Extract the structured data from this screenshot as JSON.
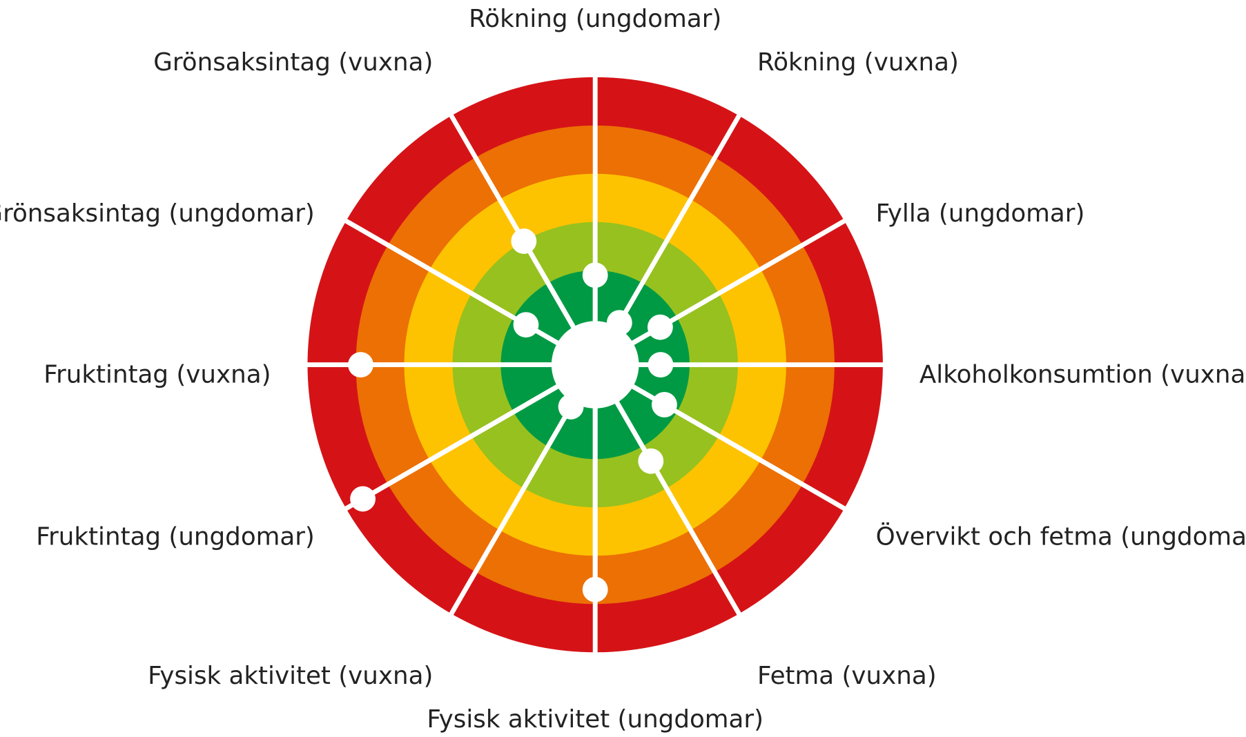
{
  "chart_data": {
    "type": "radial",
    "categories": [
      "Rökning (ungdomar)",
      "Rökning (vuxna)",
      "Fylla (ungdomar)",
      "Alkoholkonsumtion (vuxna)",
      "Övervikt och fetma (ungdomar)",
      "Fetma (vuxna)",
      "Fysisk aktivitet (ungdomar)",
      "Fysisk aktivitet (vuxna)",
      "Fruktintag (ungdomar)",
      "Fruktintag (vuxna)",
      "Grönsaksintag (ungdomar)",
      "Grönsaksintag (vuxna)"
    ],
    "values": [
      0.9,
      0.05,
      0.6,
      0.4,
      0.7,
      1.35,
      3.7,
      0.05,
      4.6,
      3.9,
      0.7,
      2.0
    ],
    "color": "#ffffff",
    "rlim": [
      0,
      5
    ],
    "rticks": [
      1,
      2,
      3,
      4,
      5
    ],
    "ring_colors": [
      "#009a44",
      "#97c11f",
      "#fdc300",
      "#ec7004",
      "#d51317"
    ]
  }
}
